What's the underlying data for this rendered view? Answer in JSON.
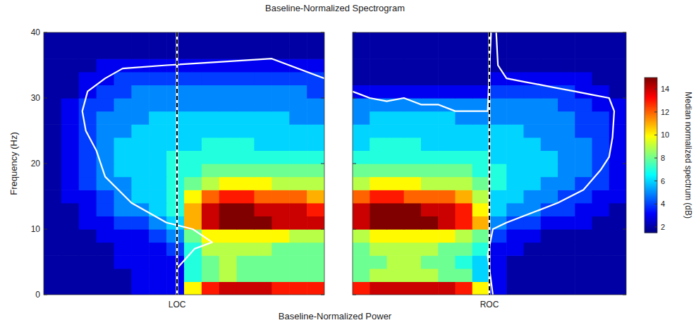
{
  "chart_data": {
    "type": "heatmap",
    "title": "Baseline-Normalized Spectrogram",
    "x_label": "Baseline-Normalized Power",
    "y_label": "Frequency (Hz)",
    "ylim": [
      0,
      40
    ],
    "yticks": [
      0,
      10,
      20,
      30,
      40
    ],
    "y_bins": [
      0,
      2,
      4,
      6,
      8,
      10,
      12,
      14,
      16,
      18,
      20,
      22,
      24,
      26,
      28,
      30,
      32,
      34,
      36,
      38,
      40
    ],
    "x_bins": [
      0,
      1,
      2,
      3,
      4,
      5,
      6,
      7,
      8,
      9,
      10,
      11,
      12,
      13,
      14,
      15,
      16
    ],
    "colorbar": {
      "label": "Median normalized spectrum (dB)",
      "range": [
        1.5,
        15
      ],
      "ticks": [
        2,
        4,
        6,
        8,
        10,
        12,
        14
      ]
    },
    "panels": [
      {
        "xlim": [
          0,
          16
        ],
        "xticks": [
          {
            "value": 7.6,
            "label": "LOC"
          }
        ],
        "values": [
          [
            2,
            2,
            2,
            2,
            2,
            3,
            3,
            3,
            10,
            13,
            14,
            14,
            14,
            13,
            13,
            13
          ],
          [
            2,
            2,
            2,
            2,
            2,
            3,
            3,
            3,
            7,
            8,
            9,
            8,
            8,
            8,
            8,
            8
          ],
          [
            2,
            2,
            2,
            2,
            3,
            3,
            3,
            3,
            7,
            8,
            9,
            8,
            8,
            8,
            8,
            8
          ],
          [
            2,
            2,
            2,
            2,
            3,
            3,
            3,
            4,
            7,
            9,
            9,
            9,
            9,
            8,
            8,
            8
          ],
          [
            2,
            2,
            2,
            3,
            3,
            3,
            4,
            5,
            8,
            10,
            10,
            10,
            10,
            10,
            9,
            9
          ],
          [
            2,
            2,
            3,
            3,
            4,
            4,
            5,
            6,
            11,
            14,
            15,
            15,
            15,
            14,
            14,
            14
          ],
          [
            2,
            2,
            3,
            4,
            5,
            5,
            6,
            7,
            11,
            14,
            15,
            15,
            14,
            14,
            14,
            13
          ],
          [
            2,
            3,
            3,
            4,
            5,
            6,
            6,
            7,
            10,
            12,
            13,
            13,
            12,
            12,
            12,
            11
          ],
          [
            2,
            3,
            4,
            5,
            5,
            6,
            6,
            7,
            8,
            9,
            10,
            10,
            10,
            9,
            9,
            9
          ],
          [
            2,
            3,
            4,
            5,
            6,
            6,
            6,
            7,
            7,
            8,
            8,
            8,
            8,
            8,
            8,
            8
          ],
          [
            2,
            3,
            4,
            5,
            6,
            6,
            6,
            7,
            7,
            7,
            7,
            7,
            7,
            7,
            7,
            7
          ],
          [
            2,
            3,
            4,
            5,
            6,
            6,
            6,
            6,
            6,
            7,
            7,
            7,
            6,
            6,
            6,
            6
          ],
          [
            2,
            3,
            4,
            5,
            5,
            6,
            6,
            6,
            6,
            6,
            6,
            6,
            6,
            6,
            6,
            6
          ],
          [
            2,
            3,
            4,
            5,
            5,
            5,
            6,
            6,
            6,
            6,
            6,
            6,
            6,
            6,
            5,
            5
          ],
          [
            2,
            3,
            4,
            4,
            5,
            5,
            5,
            5,
            5,
            5,
            5,
            5,
            5,
            5,
            5,
            5
          ],
          [
            2,
            2,
            3,
            4,
            4,
            5,
            5,
            5,
            5,
            5,
            5,
            5,
            5,
            5,
            5,
            4
          ],
          [
            2,
            2,
            3,
            3,
            4,
            4,
            4,
            4,
            4,
            4,
            4,
            4,
            4,
            4,
            4,
            4
          ],
          [
            2,
            2,
            2,
            3,
            3,
            3,
            3,
            3,
            3,
            3,
            3,
            3,
            3,
            3,
            3,
            3
          ],
          [
            2,
            2,
            2,
            2,
            2,
            2,
            2,
            2,
            2,
            2,
            2,
            2,
            2,
            2,
            2,
            2
          ],
          [
            2,
            2,
            2,
            2,
            2,
            2,
            2,
            2,
            2,
            2,
            2,
            2,
            2,
            2,
            2,
            2
          ]
        ],
        "contour": {
          "x": [
            7.6,
            7.6,
            8.6,
            9.6,
            8.5,
            7,
            5,
            3.5,
            3,
            2.4,
            2.2,
            2.5,
            3.5,
            4.5,
            7,
            10,
            13,
            16
          ],
          "y": [
            0,
            4,
            7,
            8,
            10,
            11,
            14,
            18,
            22,
            25,
            28,
            31,
            33,
            34.5,
            35,
            35.5,
            36,
            33
          ]
        }
      },
      {
        "xlim": [
          0,
          16
        ],
        "xticks": [
          {
            "value": 8,
            "label": "ROC"
          }
        ],
        "tick_labels": "x",
        "values": [
          [
            13,
            14,
            14,
            14,
            14,
            14,
            13,
            10,
            3,
            2,
            2,
            2,
            2,
            2,
            2,
            2
          ],
          [
            8,
            9,
            9,
            9,
            9,
            8,
            8,
            6,
            3,
            2,
            2,
            2,
            2,
            2,
            2,
            2
          ],
          [
            8,
            8,
            9,
            9,
            8,
            8,
            7,
            6,
            3,
            2,
            2,
            2,
            2,
            2,
            2,
            2
          ],
          [
            8,
            9,
            9,
            9,
            9,
            8,
            8,
            7,
            3,
            3,
            2,
            2,
            2,
            2,
            2,
            2
          ],
          [
            9,
            10,
            10,
            10,
            10,
            10,
            9,
            8,
            4,
            3,
            3,
            2,
            2,
            2,
            2,
            2
          ],
          [
            14,
            15,
            15,
            15,
            15,
            14,
            13,
            11,
            5,
            4,
            4,
            3,
            3,
            3,
            2,
            2
          ],
          [
            14,
            15,
            15,
            15,
            14,
            14,
            13,
            10,
            6,
            5,
            5,
            4,
            4,
            3,
            3,
            2
          ],
          [
            12,
            13,
            13,
            12,
            12,
            12,
            11,
            9,
            6,
            6,
            5,
            5,
            4,
            4,
            3,
            3
          ],
          [
            9,
            10,
            10,
            10,
            9,
            9,
            9,
            8,
            7,
            6,
            6,
            5,
            5,
            4,
            4,
            3
          ],
          [
            8,
            8,
            8,
            8,
            8,
            8,
            8,
            7,
            7,
            6,
            6,
            6,
            5,
            5,
            4,
            3
          ],
          [
            7,
            7,
            7,
            7,
            7,
            7,
            7,
            7,
            6,
            6,
            6,
            6,
            5,
            5,
            4,
            3
          ],
          [
            6,
            7,
            7,
            7,
            6,
            6,
            6,
            6,
            6,
            6,
            6,
            5,
            5,
            5,
            4,
            3
          ],
          [
            6,
            6,
            6,
            6,
            6,
            6,
            6,
            6,
            6,
            6,
            5,
            5,
            5,
            4,
            4,
            3
          ],
          [
            5,
            6,
            6,
            6,
            6,
            6,
            5,
            5,
            5,
            5,
            5,
            5,
            5,
            4,
            4,
            3
          ],
          [
            5,
            5,
            5,
            5,
            5,
            5,
            5,
            5,
            5,
            5,
            5,
            5,
            4,
            4,
            3,
            3
          ],
          [
            3,
            3,
            3,
            3,
            3,
            3,
            3,
            3,
            4,
            4,
            4,
            4,
            4,
            3,
            3,
            2
          ],
          [
            2,
            2,
            2,
            2,
            2,
            2,
            2,
            2,
            3,
            3,
            3,
            3,
            3,
            3,
            2,
            2
          ],
          [
            2,
            2,
            2,
            2,
            2,
            2,
            2,
            2,
            2,
            2,
            2,
            2,
            2,
            2,
            2,
            2
          ],
          [
            2,
            2,
            2,
            2,
            2,
            2,
            2,
            2,
            2,
            2,
            2,
            2,
            2,
            2,
            2,
            2
          ],
          [
            2,
            2,
            2,
            2,
            2,
            2,
            2,
            2,
            2,
            2,
            2,
            2,
            2,
            2,
            2,
            2
          ]
        ],
        "contour": {
          "x": [
            0,
            1,
            2,
            3,
            4,
            5,
            6,
            7,
            7.9,
            8.1,
            null,
            8.4,
            8.5,
            9,
            10,
            11,
            12,
            13,
            14,
            15,
            15.3,
            15.2,
            15,
            14.5,
            13.5,
            12,
            10.5,
            9,
            8.2,
            7.9,
            8.2
          ],
          "y": [
            31,
            30,
            29.5,
            30,
            29,
            29,
            28,
            28,
            28,
            40,
            null,
            40,
            35,
            33,
            32.5,
            32,
            31.5,
            31,
            30.5,
            30,
            28,
            24,
            21,
            19,
            16,
            14,
            12.5,
            11,
            10,
            6,
            0
          ]
        }
      }
    ]
  }
}
